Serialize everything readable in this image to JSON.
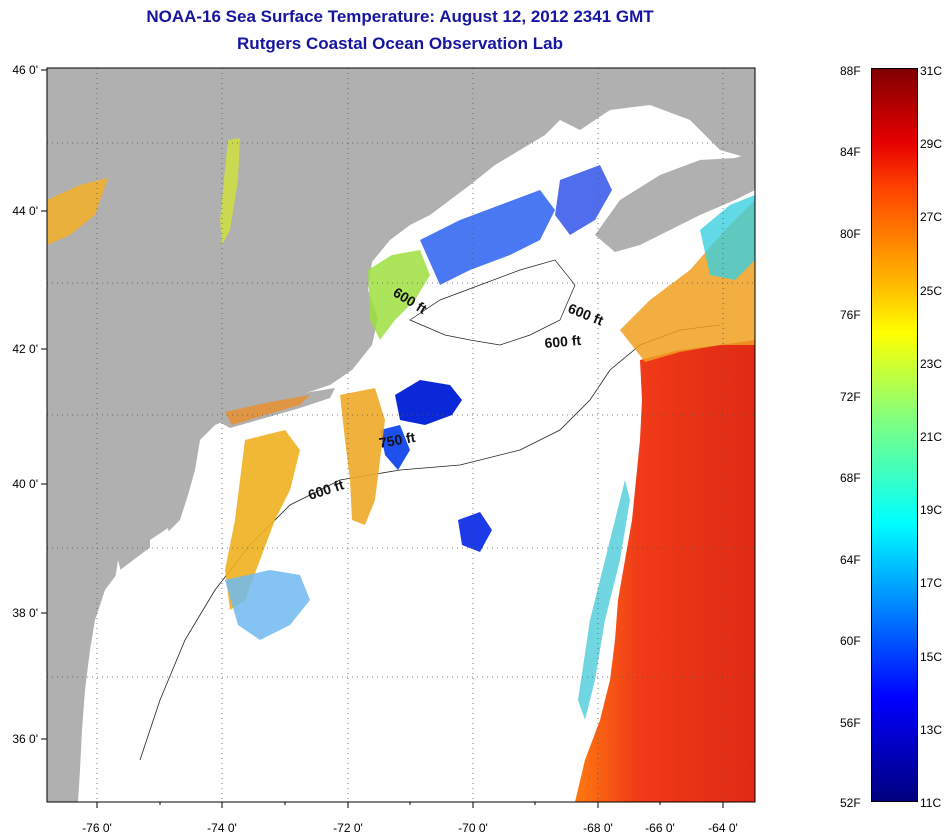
{
  "title": {
    "line1": "NOAA-16 Sea Surface Temperature:  August 12, 2012 2341 GMT",
    "line2": "Rutgers Coastal Ocean Observation Lab"
  },
  "map": {
    "lon_range": [
      -77.0,
      -63.0
    ],
    "lat_range": [
      35.0,
      46.0
    ],
    "grid": "dotted",
    "lon_ticks": [
      "-76 0'",
      "-74 0'",
      "-72 0'",
      "-70 0'",
      "-68 0'",
      "-66 0'",
      "-64 0'"
    ],
    "lat_ticks": [
      "46 0'",
      "44 0'",
      "42 0'",
      "40 0'",
      "38 0'",
      "36 0'"
    ],
    "contour_labels": [
      "600 ft",
      "600 ft",
      "600 ft",
      "600 ft",
      "750 ft"
    ],
    "colors": {
      "land": "#b0b0b0",
      "cloud": "#ffffff",
      "warm_water": "#e83018",
      "cool_water": "#0a28d8"
    }
  },
  "colorbar": {
    "fahrenheit": [
      "88F",
      "84F",
      "80F",
      "76F",
      "72F",
      "68F",
      "64F",
      "60F",
      "56F",
      "52F"
    ],
    "celsius": [
      "31C",
      "29C",
      "27C",
      "25C",
      "23C",
      "21C",
      "19C",
      "17C",
      "15C",
      "13C",
      "11C"
    ]
  }
}
